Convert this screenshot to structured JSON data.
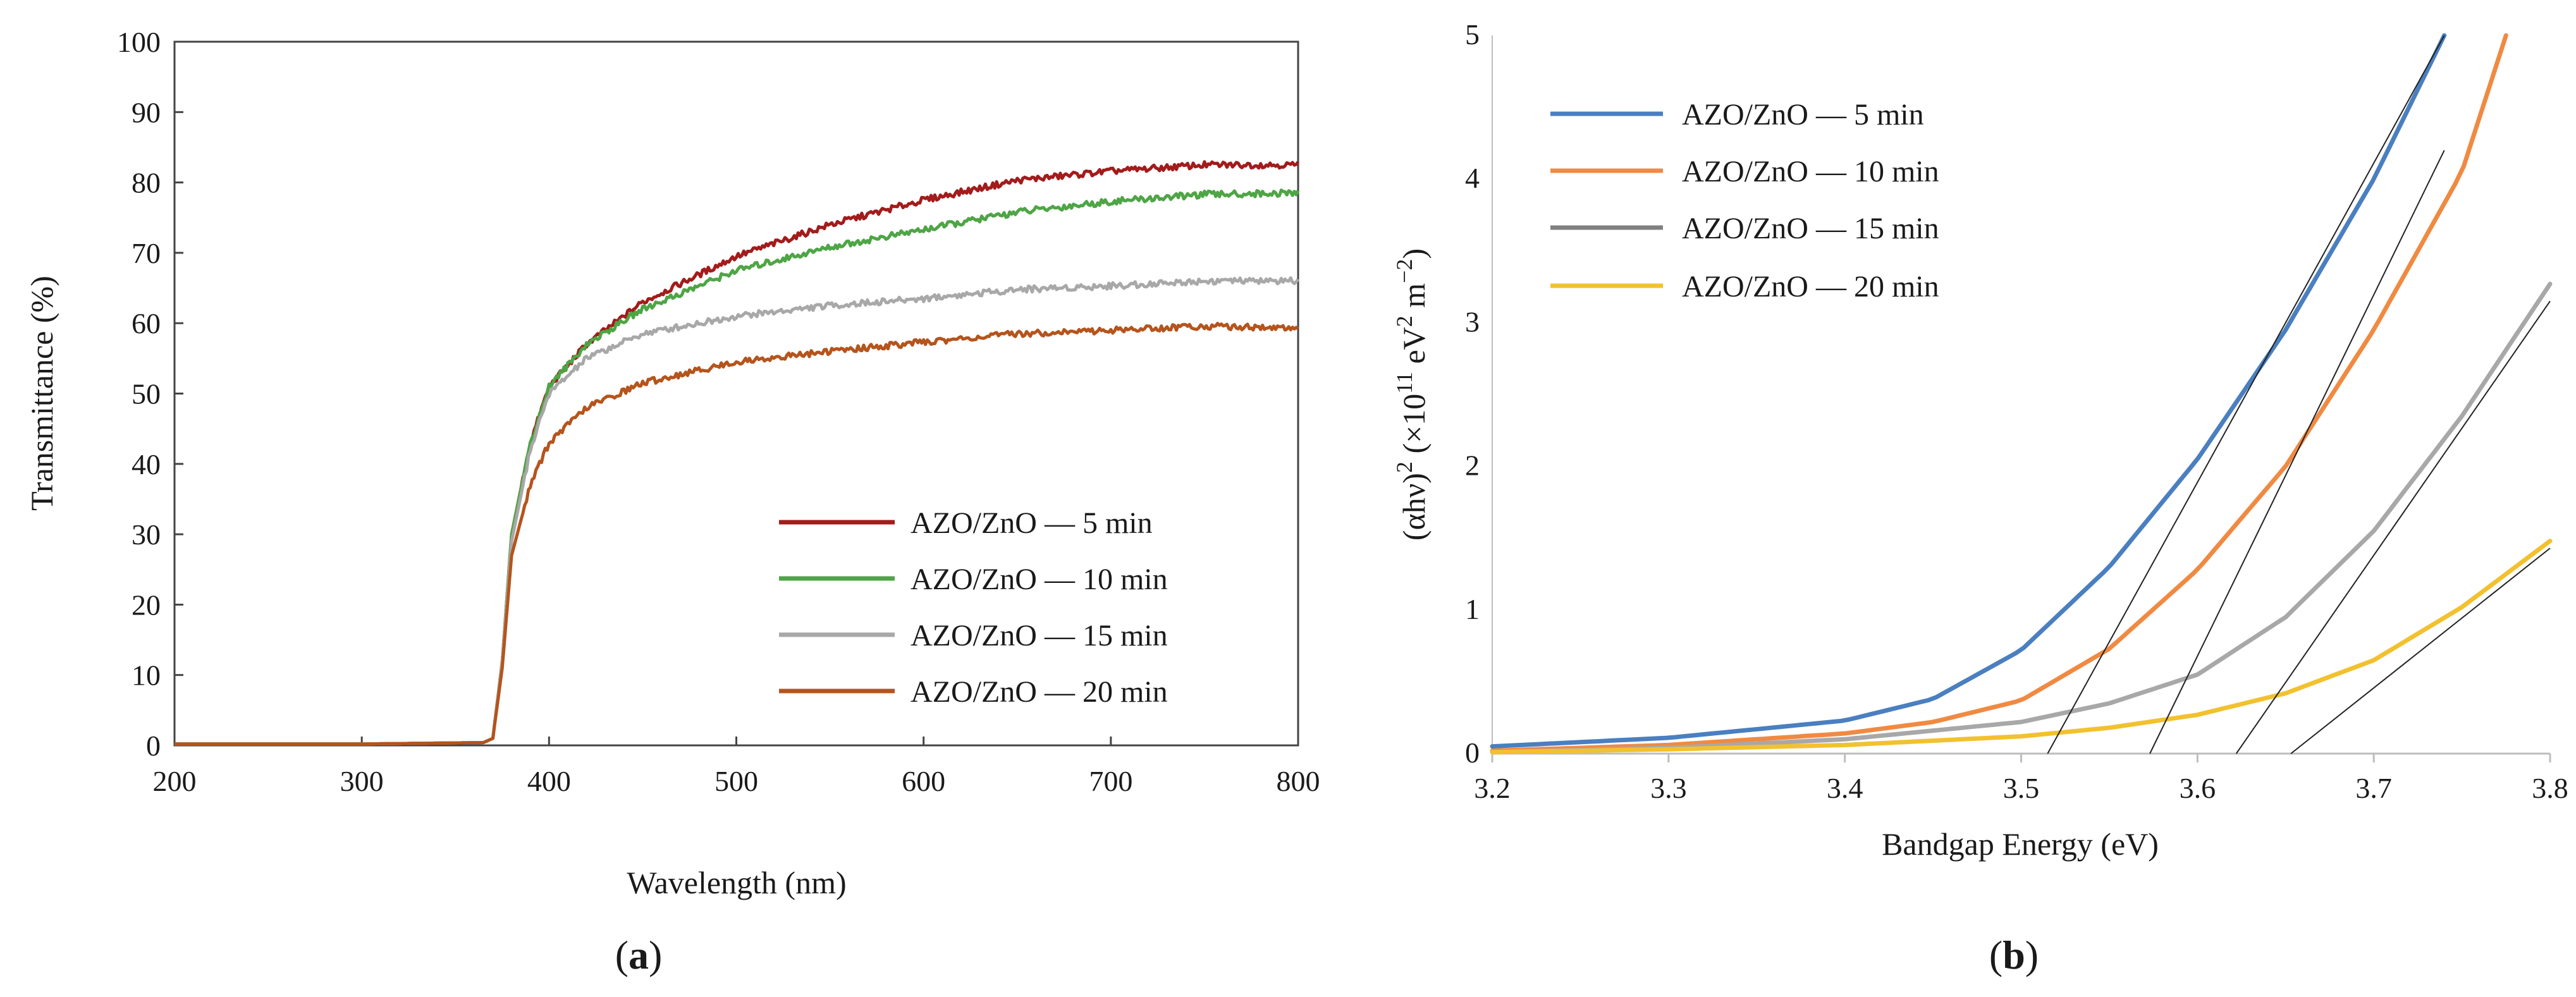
{
  "chart_data": [
    {
      "type": "line",
      "panel": "(a)",
      "panel_label": {
        "open": "(",
        "letter": "a",
        "close": ")"
      },
      "xlabel": "Wavelength (nm)",
      "ylabel": "Transmittance (%)",
      "xlim": [
        200,
        800
      ],
      "ylim": [
        0,
        100
      ],
      "xticks": [
        200,
        300,
        400,
        500,
        600,
        700,
        800
      ],
      "yticks": [
        0,
        10,
        20,
        30,
        40,
        50,
        60,
        70,
        80,
        90,
        100
      ],
      "legend_position": "bottom-right",
      "series": [
        {
          "name": "AZO/ZnO — 5 min",
          "color": "#a31b1b",
          "x": [
            200,
            300,
            365,
            370,
            375,
            380,
            390,
            400,
            420,
            450,
            500,
            550,
            600,
            650,
            700,
            750,
            800
          ],
          "y": [
            0.2,
            0.2,
            0.4,
            1.0,
            12,
            30,
            43,
            51,
            57,
            63,
            69.5,
            74,
            77.5,
            80.3,
            81.6,
            82.5,
            82.5
          ]
        },
        {
          "name": "AZO/ZnO — 10 min",
          "color": "#4ea545",
          "x": [
            200,
            300,
            365,
            370,
            375,
            380,
            390,
            400,
            420,
            450,
            500,
            550,
            600,
            650,
            700,
            750,
            800
          ],
          "y": [
            0.2,
            0.2,
            0.4,
            1.0,
            12,
            30,
            43,
            51,
            57,
            62,
            67.5,
            70.8,
            73.3,
            75.8,
            77.3,
            78.3,
            78.5
          ]
        },
        {
          "name": "AZO/ZnO — 15 min",
          "color": "#a8a8a8",
          "x": [
            200,
            300,
            365,
            370,
            375,
            380,
            390,
            400,
            420,
            450,
            500,
            550,
            600,
            650,
            700,
            750,
            800
          ],
          "y": [
            0.2,
            0.2,
            0.4,
            1.0,
            12,
            29,
            42,
            50,
            55,
            58.5,
            61,
            62.5,
            63.5,
            64.8,
            65.3,
            66,
            66
          ]
        },
        {
          "name": "AZO/ZnO — 20 min",
          "color": "#b5541c",
          "x": [
            200,
            300,
            365,
            370,
            375,
            380,
            390,
            400,
            420,
            450,
            500,
            550,
            600,
            650,
            700,
            750,
            800
          ],
          "y": [
            0.2,
            0.2,
            0.4,
            1.0,
            11,
            27,
            37,
            43,
            48,
            51.5,
            54.5,
            56,
            57.3,
            58.5,
            59,
            59.6,
            59.3
          ]
        }
      ]
    },
    {
      "type": "line",
      "panel": "(b)",
      "panel_label": {
        "open": "(",
        "letter": "b",
        "close": ")"
      },
      "xlabel": "Bandgap Energy (eV)",
      "ylabel_parts": {
        "a": "(αhν)",
        "b": "2",
        "c": " (×10",
        "d": "11",
        "e": " eV",
        "f": "2",
        "g": " m",
        "h": "−2",
        "i": ")"
      },
      "xlim": [
        3.2,
        3.8
      ],
      "ylim": [
        0,
        5
      ],
      "xticks": [
        "3.2",
        "3.3",
        "3.4",
        "3.5",
        "3.6",
        "3.7",
        "3.8"
      ],
      "yticks": [
        "0",
        "1",
        "2",
        "3",
        "4",
        "5"
      ],
      "legend_position": "top-left",
      "series": [
        {
          "name": "AZO/ZnO — 5 min",
          "color": "#4a7fc0",
          "x": [
            3.2,
            3.3,
            3.4,
            3.45,
            3.5,
            3.55,
            3.6,
            3.65,
            3.7,
            3.74
          ],
          "y": [
            0.05,
            0.11,
            0.23,
            0.38,
            0.72,
            1.3,
            2.05,
            2.95,
            4.0,
            5.0
          ]
        },
        {
          "name": "AZO/ZnO — 10 min",
          "color": "#f08a42",
          "x": [
            3.2,
            3.3,
            3.4,
            3.45,
            3.5,
            3.55,
            3.6,
            3.65,
            3.7,
            3.75,
            3.775
          ],
          "y": [
            0.02,
            0.06,
            0.14,
            0.22,
            0.37,
            0.73,
            1.28,
            2.0,
            2.95,
            4.05,
            5.0
          ]
        },
        {
          "name": "AZO/ZnO — 15 min",
          "color": "#a8a8a8",
          "x": [
            3.2,
            3.3,
            3.4,
            3.5,
            3.55,
            3.6,
            3.65,
            3.7,
            3.75,
            3.8
          ],
          "y": [
            0.01,
            0.04,
            0.1,
            0.22,
            0.35,
            0.55,
            0.95,
            1.55,
            2.35,
            3.27
          ]
        },
        {
          "name": "AZO/ZnO — 20 min",
          "color": "#f2c12e",
          "x": [
            3.2,
            3.3,
            3.4,
            3.5,
            3.55,
            3.6,
            3.65,
            3.7,
            3.75,
            3.8
          ],
          "y": [
            0.01,
            0.03,
            0.06,
            0.12,
            0.18,
            0.27,
            0.42,
            0.65,
            1.02,
            1.48
          ]
        }
      ],
      "tangent_lines": [
        {
          "x": [
            3.515,
            3.74
          ],
          "y": [
            0,
            5.0
          ]
        },
        {
          "x": [
            3.573,
            3.74
          ],
          "y": [
            0,
            4.2
          ]
        },
        {
          "x": [
            3.622,
            3.8
          ],
          "y": [
            0,
            3.15
          ]
        },
        {
          "x": [
            3.653,
            3.8
          ],
          "y": [
            0,
            1.43
          ]
        }
      ]
    }
  ]
}
